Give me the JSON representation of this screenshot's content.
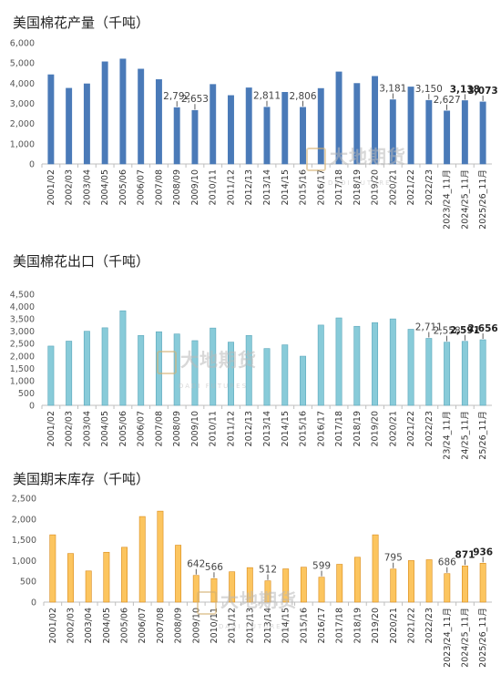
{
  "charts": [
    {
      "title": "美国棉花产量（千吨）",
      "color": "#4a7ab8",
      "stroke": "#4a7ab8"
    },
    {
      "title": "美国棉花出口（千吨）",
      "color": "#88cbd9",
      "stroke": "#5aa6ba"
    },
    {
      "title": "美国期末库存（千吨）",
      "color": "#fcc55f",
      "stroke": "#d98b1a"
    }
  ],
  "watermark": {
    "cn": "大地期货",
    "en": "DADI FUTURES"
  },
  "chart_data": [
    {
      "type": "bar",
      "title": "美国棉花产量（千吨）",
      "categories": [
        "2001/02",
        "2002/03",
        "2003/04",
        "2004/05",
        "2005/06",
        "2006/07",
        "2007/08",
        "2008/09",
        "2009/10",
        "2010/11",
        "2011/12",
        "2012/13",
        "2013/14",
        "2014/15",
        "2015/16",
        "2016/17",
        "2017/18",
        "2018/19",
        "2019/20",
        "2020/21",
        "2021/22",
        "2022/23",
        "2023/24_11月",
        "2024/25_11月",
        "2025/26_11月"
      ],
      "values": [
        4420,
        3750,
        3970,
        5060,
        5200,
        4700,
        4180,
        2792,
        2653,
        3940,
        3390,
        3770,
        2811,
        3550,
        2806,
        3740,
        4560,
        3990,
        4340,
        3181,
        3815,
        3150,
        2627,
        3138,
        3073
      ],
      "labels": [
        null,
        null,
        null,
        null,
        null,
        null,
        null,
        "2,792",
        "2,653",
        null,
        null,
        null,
        "2,811",
        null,
        "2,806",
        null,
        null,
        null,
        null,
        "3,181",
        null,
        "3,150",
        "2,627",
        "3,138",
        "3,073"
      ],
      "bold_labels": [
        23,
        24
      ],
      "yticks": [
        "0",
        "1,000",
        "2,000",
        "3,000",
        "4,000",
        "5,000",
        "6,000"
      ],
      "ylim": [
        0,
        6000
      ],
      "grid": false
    },
    {
      "type": "bar",
      "title": "美国棉花出口（千吨）",
      "categories": [
        "2001/02",
        "2002/03",
        "2003/04",
        "2004/05",
        "2005/06",
        "2006/07",
        "2007/08",
        "2008/09",
        "2009/10",
        "2010/11",
        "2011/12",
        "2012/13",
        "2013/14",
        "2014/15",
        "2015/16",
        "2016/17",
        "2017/18",
        "2018/19",
        "2019/20",
        "2020/21",
        "2021/22",
        "2022/23",
        "23/24_11月",
        "24/25_11月",
        "25/26_11月"
      ],
      "values": [
        2400,
        2600,
        3000,
        3140,
        3830,
        2830,
        2980,
        2890,
        2620,
        3130,
        2560,
        2830,
        2300,
        2450,
        1990,
        3250,
        3540,
        3200,
        3350,
        3500,
        3080,
        2711,
        2558,
        2591,
        2656
      ],
      "labels": [
        null,
        null,
        null,
        null,
        null,
        null,
        null,
        null,
        null,
        null,
        null,
        null,
        null,
        null,
        null,
        null,
        null,
        null,
        null,
        null,
        null,
        "2,711",
        "2,558",
        "2,591",
        "2,656"
      ],
      "bold_labels": [
        23,
        24
      ],
      "yticks": [
        "0",
        "500",
        "1,000",
        "1,500",
        "2,000",
        "2,500",
        "3,000",
        "3,500",
        "4,000",
        "4,500"
      ],
      "ylim": [
        0,
        4500
      ],
      "grid": false
    },
    {
      "type": "bar",
      "title": "美国期末库存（千吨）",
      "categories": [
        "2001/02",
        "2002/03",
        "2003/04",
        "2004/05",
        "2005/06",
        "2006/07",
        "2007/08",
        "2008/09",
        "2009/10",
        "2010/11",
        "2011/12",
        "2012/13",
        "2013/14",
        "2014/15",
        "2015/16",
        "2016/17",
        "2017/18",
        "2018/19",
        "2019/20",
        "2020/21",
        "2021/22",
        "2022/23",
        "2023/24_11月",
        "2024/25_11月",
        "2025/26_11月"
      ],
      "values": [
        1620,
        1170,
        750,
        1200,
        1320,
        2060,
        2190,
        1370,
        642,
        566,
        730,
        830,
        512,
        800,
        840,
        599,
        910,
        1080,
        1620,
        795,
        1000,
        1020,
        686,
        871,
        936
      ],
      "labels": [
        null,
        null,
        null,
        null,
        null,
        null,
        null,
        null,
        "642",
        "566",
        null,
        null,
        "512",
        null,
        null,
        "599",
        null,
        null,
        null,
        "795",
        null,
        null,
        "686",
        "871",
        "936"
      ],
      "bold_labels": [
        23,
        24
      ],
      "yticks": [
        "0",
        "500",
        "1,000",
        "1,500",
        "2,000",
        "2,500"
      ],
      "ylim": [
        0,
        2500
      ],
      "grid": false
    }
  ]
}
